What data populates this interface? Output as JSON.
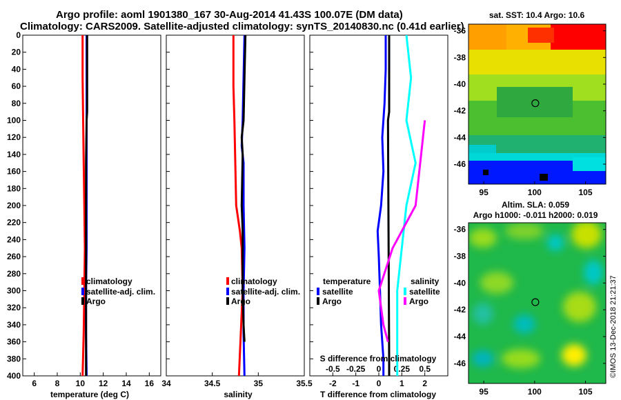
{
  "header": {
    "line1": "Argo profile: aoml 1901380_167 30-Aug-2014 41.43S 100.07E (DM data)",
    "line2": "Climatology: CARS2009. Satellite-adjusted climatology: synTS_20140830.nc (0.41d earlier)"
  },
  "colors": {
    "climatology": "#ff0000",
    "satellite": "#0000ff",
    "argo": "#000000",
    "sat_salinity": "#00ffff",
    "argo_salinity": "#ff00ff"
  },
  "chart_data": [
    {
      "name": "temperature-profile",
      "type": "line",
      "xlabel": "temperature (deg C)",
      "ylabel": "",
      "xlim": [
        5,
        17
      ],
      "ylim": [
        400,
        0
      ],
      "x_ticks": [
        6,
        8,
        10,
        12,
        14,
        16
      ],
      "y_ticks": [
        0,
        20,
        40,
        60,
        80,
        100,
        120,
        140,
        160,
        180,
        200,
        220,
        240,
        260,
        280,
        300,
        320,
        340,
        360,
        380,
        400
      ],
      "legend": [
        "climatology",
        "satellite-adj. clim.",
        "Argo"
      ],
      "series": [
        {
          "name": "climatology",
          "color": "#ff0000",
          "depth": [
            0,
            50,
            100,
            150,
            200,
            250,
            300,
            350,
            400
          ],
          "values": [
            10.2,
            10.2,
            10.25,
            10.3,
            10.35,
            10.4,
            10.35,
            10.3,
            10.2
          ]
        },
        {
          "name": "satellite-adj. clim.",
          "color": "#0000ff",
          "depth": [
            0,
            50,
            100,
            150,
            200,
            250,
            300,
            350,
            400
          ],
          "values": [
            10.55,
            10.55,
            10.55,
            10.55,
            10.55,
            10.55,
            10.5,
            10.5,
            10.55
          ]
        },
        {
          "name": "Argo",
          "color": "#000000",
          "depth": [
            0,
            50,
            90,
            100,
            150,
            200,
            250,
            300,
            400
          ],
          "values": [
            10.6,
            10.6,
            10.6,
            10.55,
            10.5,
            10.5,
            10.5,
            10.5,
            10.5
          ]
        }
      ]
    },
    {
      "name": "salinity-profile",
      "type": "line",
      "xlabel": "salinity",
      "ylabel": "",
      "xlim": [
        34,
        35.5
      ],
      "ylim": [
        400,
        0
      ],
      "x_ticks": [
        34,
        34.5,
        35,
        35.5
      ],
      "x_tick_labels": [
        "34",
        "34.5",
        "35",
        "35.5"
      ],
      "legend": [
        "climatology",
        "satellite-adj. clim.",
        "Argo"
      ],
      "series": [
        {
          "name": "climatology",
          "color": "#ff0000",
          "depth": [
            0,
            60,
            100,
            150,
            200,
            230,
            250,
            300,
            350,
            400
          ],
          "values": [
            34.73,
            34.73,
            34.74,
            34.75,
            34.76,
            34.8,
            34.82,
            34.83,
            34.81,
            34.79
          ]
        },
        {
          "name": "satellite-adj. clim.",
          "color": "#0000ff",
          "depth": [
            0,
            50,
            100,
            130,
            150,
            200,
            250,
            300,
            350,
            400
          ],
          "values": [
            34.85,
            34.84,
            34.83,
            34.82,
            34.84,
            34.84,
            34.85,
            34.84,
            34.84,
            34.85
          ]
        },
        {
          "name": "Argo",
          "color": "#000000",
          "depth": [
            0,
            50,
            100,
            120,
            140,
            200,
            230,
            260,
            300,
            340,
            360
          ],
          "values": [
            34.86,
            34.85,
            34.84,
            34.82,
            34.83,
            34.82,
            34.83,
            34.83,
            34.83,
            34.84,
            34.85
          ]
        }
      ]
    },
    {
      "name": "difference-profile",
      "type": "line",
      "xlabel": "T difference from climatology",
      "x2label": "S difference from climatology",
      "xlim": [
        -3,
        3
      ],
      "x_ticks": [
        -2,
        -1,
        0,
        1,
        2
      ],
      "x2_ticks": [
        -0.5,
        -0.25,
        0,
        0.25,
        0.5
      ],
      "x2_tick_labels": [
        "-0.5",
        "-0.25",
        "0",
        "0.25",
        "0.5"
      ],
      "ylim": [
        400,
        0
      ],
      "legend_groups": [
        "temperature",
        "salinity"
      ],
      "legend": [
        "satellite",
        "Argo",
        "satellite",
        "Argo"
      ],
      "series": [
        {
          "name": "T satellite",
          "color": "#0000ff",
          "depth": [
            0,
            40,
            80,
            120,
            160,
            200,
            230,
            260,
            300,
            340,
            380,
            400
          ],
          "values": [
            0.3,
            0.3,
            0.25,
            0.15,
            0.2,
            0.1,
            -0.05,
            0.0,
            0.05,
            0.1,
            0.2,
            0.2
          ]
        },
        {
          "name": "T Argo",
          "color": "#000000",
          "depth": [
            0,
            60,
            90,
            100,
            380,
            400
          ],
          "values": [
            0.45,
            0.45,
            0.45,
            0.4,
            0.45,
            0.45
          ]
        },
        {
          "name": "S satellite",
          "color": "#00ffff",
          "depth": [
            0,
            50,
            100,
            150,
            200,
            250,
            300,
            350,
            400
          ],
          "values": [
            0.3,
            0.35,
            0.3,
            0.4,
            0.3,
            0.25,
            0.2,
            0.2,
            0.2
          ]
        },
        {
          "name": "S Argo",
          "color": "#ff00ff",
          "depth": [
            100,
            150,
            200,
            250,
            300,
            340,
            360
          ],
          "values": [
            0.5,
            0.45,
            0.4,
            0.15,
            0.0,
            0.05,
            0.1
          ]
        }
      ]
    },
    {
      "name": "sst-map",
      "type": "heatmap",
      "title": "sat. SST: 10.4 Argo: 10.6",
      "x_ticks": [
        95,
        100,
        105
      ],
      "y_ticks": [
        -36,
        -38,
        -40,
        -42,
        -44,
        -46
      ],
      "xlim": [
        93.5,
        107
      ],
      "ylim": [
        -47.5,
        -35.5
      ],
      "profile_location": [
        100.07,
        -41.43
      ]
    },
    {
      "name": "sla-map",
      "type": "heatmap",
      "title": "Altim. SLA: 0.059",
      "subtitle": "Argo h1000: -0.011 h2000: 0.019",
      "x_ticks": [
        95,
        100,
        105
      ],
      "y_ticks": [
        -36,
        -38,
        -40,
        -42,
        -44,
        -46
      ],
      "xlim": [
        93.5,
        107
      ],
      "ylim": [
        -47.5,
        -35.5
      ],
      "profile_location": [
        100.07,
        -41.43
      ]
    }
  ],
  "credit": "©IMOS 13-Dec-2018 21:21:37"
}
